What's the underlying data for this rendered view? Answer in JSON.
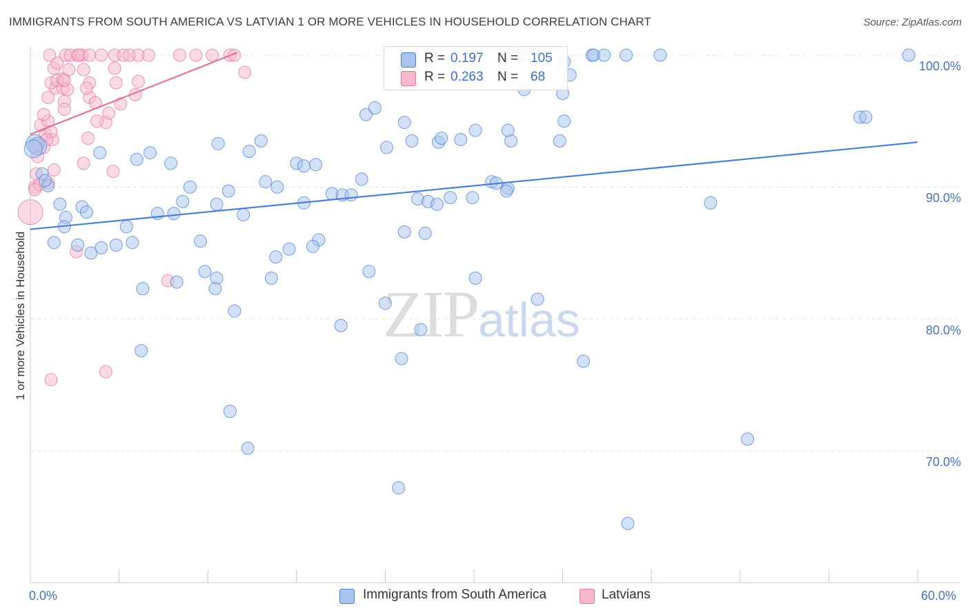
{
  "title": "IMMIGRANTS FROM SOUTH AMERICA VS LATVIAN 1 OR MORE VEHICLES IN HOUSEHOLD CORRELATION CHART",
  "source": "Source: ZipAtlas.com",
  "watermark": {
    "part1": "ZIP",
    "part2": "atlas"
  },
  "colors": {
    "blue": "#4a7fd4",
    "blue_fill": "#a8c4ee",
    "pink": "#e5739a",
    "pink_fill": "#f6b8cc",
    "grid": "#e4e4e4",
    "axis": "#c8c8c8",
    "tick_text": "#4472c4"
  },
  "legend": {
    "series": [
      {
        "r_label": "R =",
        "r_value": "0.197",
        "n_label": "N =",
        "n_value": "105"
      },
      {
        "r_label": "R =",
        "r_value": "0.263",
        "n_label": "N =",
        "n_value": "68"
      }
    ]
  },
  "chart_data": {
    "type": "scatter",
    "title": "IMMIGRANTS FROM SOUTH AMERICA VS LATVIAN 1 OR MORE VEHICLES IN HOUSEHOLD CORRELATION CHART",
    "xlabel": "",
    "ylabel": "1 or more Vehicles in Household",
    "xlim": [
      0,
      60
    ],
    "ylim": [
      60,
      100.5
    ],
    "x_tick_labels": [
      "0.0%",
      "60.0%"
    ],
    "y_ticks": [
      70,
      80,
      90,
      100
    ],
    "y_tick_labels": [
      "70.0%",
      "80.0%",
      "90.0%",
      "100.0%"
    ],
    "grid": true,
    "legend_position": "bottom",
    "series": [
      {
        "name": "Immigrants from South America",
        "color": "#4a7fd4",
        "trend": {
          "x": [
            0,
            60
          ],
          "y": [
            86.8,
            93.4
          ]
        },
        "points": [
          [
            0.3,
            93.3
          ],
          [
            0.5,
            93.1
          ],
          [
            0.2,
            92.9
          ],
          [
            0.8,
            91
          ],
          [
            1.2,
            90.1
          ],
          [
            1,
            90.5
          ],
          [
            2,
            88.7
          ],
          [
            3.5,
            88.5
          ],
          [
            2.4,
            87.7
          ],
          [
            3.8,
            88.1
          ],
          [
            2.3,
            87
          ],
          [
            6.5,
            87
          ],
          [
            1.6,
            85.8
          ],
          [
            3.2,
            85.6
          ],
          [
            4.1,
            85
          ],
          [
            4.8,
            85.4
          ],
          [
            5.8,
            85.6
          ],
          [
            6.9,
            85.8
          ],
          [
            7.6,
            82.3
          ],
          [
            9.9,
            82.8
          ],
          [
            8.6,
            88
          ],
          [
            9.7,
            88
          ],
          [
            10.3,
            88.9
          ],
          [
            12.6,
            88.7
          ],
          [
            11.5,
            85.9
          ],
          [
            10.8,
            90
          ],
          [
            13.4,
            89.7
          ],
          [
            14.4,
            87.9
          ],
          [
            15.9,
            90.4
          ],
          [
            16.7,
            90
          ],
          [
            18.5,
            88.8
          ],
          [
            20.4,
            89.5
          ],
          [
            21.1,
            89.4
          ],
          [
            21.7,
            89.4
          ],
          [
            14.8,
            92.7
          ],
          [
            15.6,
            93.5
          ],
          [
            12.7,
            93.3
          ],
          [
            9.5,
            91.8
          ],
          [
            8.1,
            92.6
          ],
          [
            7.2,
            92.1
          ],
          [
            4.7,
            92.6
          ],
          [
            18,
            91.8
          ],
          [
            18.5,
            91.6
          ],
          [
            19.3,
            91.7
          ],
          [
            22.4,
            90.6
          ],
          [
            19.5,
            86
          ],
          [
            19.1,
            85.5
          ],
          [
            16.6,
            84.7
          ],
          [
            17.5,
            85.3
          ],
          [
            12.6,
            83.1
          ],
          [
            11.8,
            83.6
          ],
          [
            12.5,
            82.3
          ],
          [
            16.3,
            83.1
          ],
          [
            13.8,
            80.6
          ],
          [
            22.9,
            83.6
          ],
          [
            24,
            81.2
          ],
          [
            24.1,
            93
          ],
          [
            25.8,
            93.5
          ],
          [
            25.3,
            94.9
          ],
          [
            22.7,
            95.5
          ],
          [
            23.3,
            96
          ],
          [
            27.6,
            93.4
          ],
          [
            27.8,
            93.7
          ],
          [
            29.1,
            93.6
          ],
          [
            30.1,
            94.3
          ],
          [
            28.4,
            89.2
          ],
          [
            26.2,
            89.1
          ],
          [
            26.9,
            88.9
          ],
          [
            27.5,
            88.7
          ],
          [
            29.9,
            89.2
          ],
          [
            26.7,
            86.5
          ],
          [
            25.3,
            86.6
          ],
          [
            26.4,
            79.2
          ],
          [
            30.1,
            83.1
          ],
          [
            31.2,
            90.4
          ],
          [
            31.5,
            90.3
          ],
          [
            32.3,
            89.9
          ],
          [
            32.2,
            89.7
          ],
          [
            32.5,
            93.5
          ],
          [
            32.3,
            94.3
          ],
          [
            33.4,
            97.4
          ],
          [
            33.3,
            100
          ],
          [
            36,
            97.1
          ],
          [
            36.1,
            95
          ],
          [
            35.8,
            93.5
          ],
          [
            27.1,
            100
          ],
          [
            32.7,
            100
          ],
          [
            36.1,
            99.5
          ],
          [
            36.5,
            98.5
          ],
          [
            38,
            100
          ],
          [
            38.1,
            100
          ],
          [
            38.8,
            100
          ],
          [
            40.3,
            100
          ],
          [
            42.6,
            100
          ],
          [
            21,
            79.5
          ],
          [
            25.1,
            77
          ],
          [
            7.5,
            77.6
          ],
          [
            34.3,
            81.5
          ],
          [
            37.4,
            76.8
          ],
          [
            13.5,
            73
          ],
          [
            14.7,
            70.2
          ],
          [
            24.9,
            67.2
          ],
          [
            46,
            88.8
          ],
          [
            56.1,
            95.3
          ],
          [
            56.5,
            95.3
          ],
          [
            48.5,
            70.9
          ],
          [
            40.4,
            64.5
          ],
          [
            59.4,
            100
          ]
        ]
      },
      {
        "name": "Latvians",
        "color": "#e5739a",
        "trend": {
          "x": [
            0,
            14
          ],
          "y": [
            94,
            100.2
          ]
        },
        "points": [
          [
            0,
            88.1
          ],
          [
            0.3,
            90
          ],
          [
            0.4,
            91
          ],
          [
            0.6,
            90.2
          ],
          [
            0.3,
            89.8
          ],
          [
            0.5,
            92.3
          ],
          [
            0.9,
            93
          ],
          [
            1,
            94
          ],
          [
            0.7,
            94.7
          ],
          [
            1.2,
            95
          ],
          [
            0.9,
            95.5
          ],
          [
            1.5,
            93.6
          ],
          [
            1.4,
            94.2
          ],
          [
            1.6,
            91.3
          ],
          [
            1.2,
            90.3
          ],
          [
            1.1,
            93.6
          ],
          [
            0.5,
            93.2
          ],
          [
            1.2,
            96.8
          ],
          [
            1.7,
            97.5
          ],
          [
            1.4,
            97.9
          ],
          [
            2.2,
            98.2
          ],
          [
            2.2,
            97.5
          ],
          [
            2.5,
            97.4
          ],
          [
            1.8,
            98.1
          ],
          [
            2.3,
            98.1
          ],
          [
            4,
            97.9
          ],
          [
            4,
            96.8
          ],
          [
            4.4,
            96.4
          ],
          [
            2.3,
            96.5
          ],
          [
            2.3,
            95.9
          ],
          [
            1.6,
            99
          ],
          [
            1.8,
            99.4
          ],
          [
            2.6,
            98.9
          ],
          [
            3.6,
            98.9
          ],
          [
            3.8,
            97.5
          ],
          [
            5.8,
            97.9
          ],
          [
            5.1,
            94.9
          ],
          [
            4.5,
            95
          ],
          [
            3.9,
            93.7
          ],
          [
            3.6,
            91.8
          ],
          [
            5.6,
            91.2
          ],
          [
            6.1,
            96.3
          ],
          [
            7.1,
            97
          ],
          [
            7.3,
            98
          ],
          [
            5.3,
            95.6
          ],
          [
            5.7,
            99
          ],
          [
            14.5,
            98.7
          ],
          [
            1.3,
            100
          ],
          [
            2.4,
            100
          ],
          [
            2.7,
            100
          ],
          [
            3.2,
            100
          ],
          [
            3.5,
            100
          ],
          [
            3.3,
            100
          ],
          [
            4,
            100
          ],
          [
            4.8,
            100
          ],
          [
            5.7,
            100
          ],
          [
            6.3,
            100
          ],
          [
            6.7,
            100
          ],
          [
            7.3,
            100
          ],
          [
            8,
            100
          ],
          [
            10.1,
            100
          ],
          [
            11.2,
            100
          ],
          [
            12.3,
            100
          ],
          [
            13.5,
            100
          ],
          [
            13.8,
            100
          ],
          [
            3.1,
            85.1
          ],
          [
            9.3,
            82.9
          ],
          [
            1.4,
            75.4
          ],
          [
            5.1,
            76
          ]
        ]
      }
    ]
  }
}
